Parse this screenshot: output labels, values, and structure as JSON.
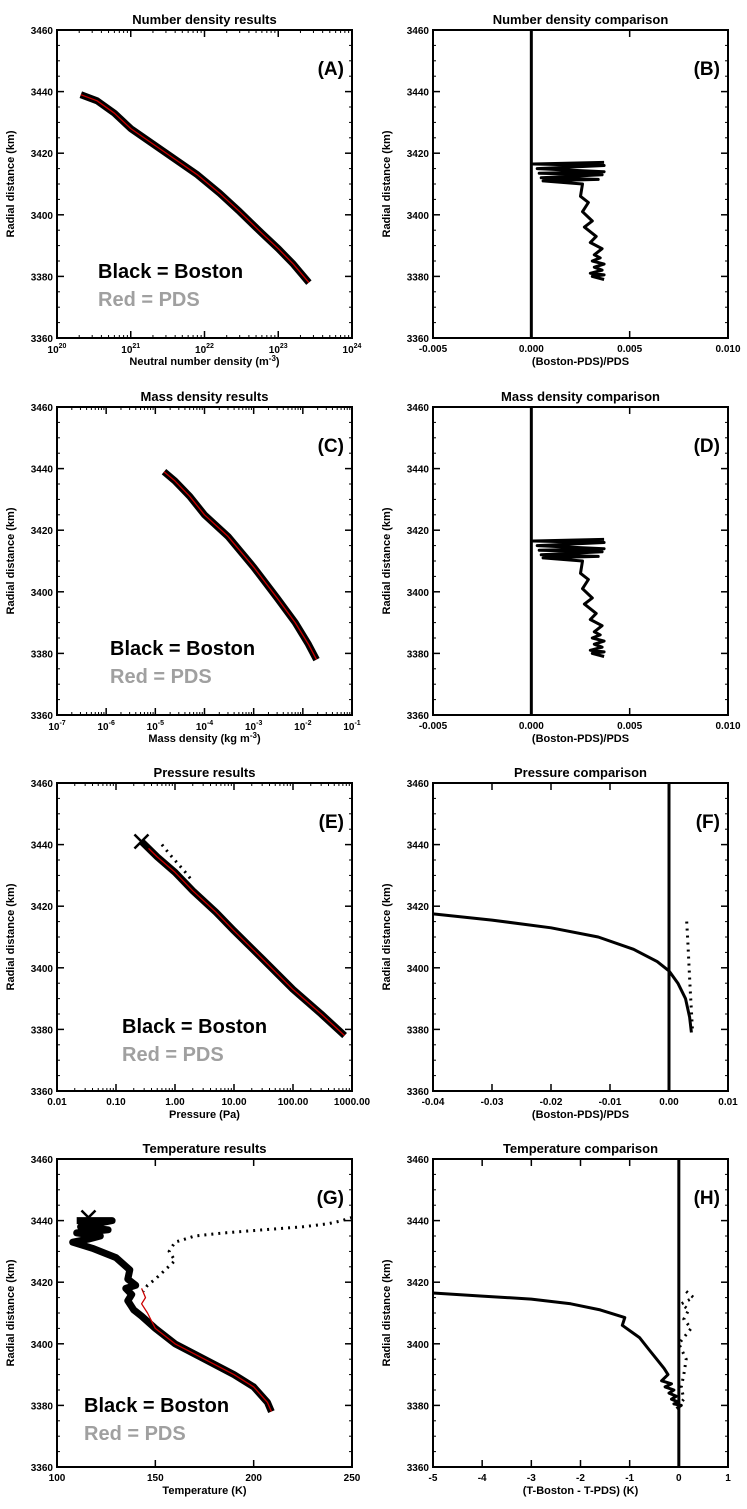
{
  "chart_data": [
    {
      "type": "line",
      "title": "Number density results",
      "panel_label": "(A)",
      "xlabel": "Neutral number density (m-3)",
      "xlabel_main": "Neutral number density (m",
      "xlabel_sup": "-3",
      "xlabel_end": ")",
      "ylabel": "Radial distance (km)",
      "xscale": "log",
      "xlim": [
        1e+20,
        1e+24
      ],
      "ylim": [
        3360,
        3460
      ],
      "x_ticks": [
        1e+20,
        1e+21,
        1e+22,
        1e+23,
        1e+24
      ],
      "x_ticklabels": [
        {
          "b": "10",
          "e": "20"
        },
        {
          "b": "10",
          "e": "21"
        },
        {
          "b": "10",
          "e": "22"
        },
        {
          "b": "10",
          "e": "23"
        },
        {
          "b": "10",
          "e": "24"
        }
      ],
      "y_ticks": [
        3360,
        3380,
        3400,
        3420,
        3440,
        3460
      ],
      "y_ticklabels": [
        "3360",
        "3380",
        "3400",
        "3420",
        "3440",
        "3460"
      ],
      "legend": [
        "Black = Boston",
        "Red = PDS"
      ],
      "legend_colors": [
        "#000000",
        "#a0a0a0"
      ],
      "series": [
        {
          "name": "Boston",
          "color": "#000000",
          "style": "thick",
          "x": [
            2.1e+20,
            3.5e+20,
            6e+20,
            1e+21,
            2e+21,
            4e+21,
            8e+21,
            1.6e+22,
            3e+22,
            6e+22,
            1e+23,
            1.6e+23,
            2.6e+23
          ],
          "y": [
            3439,
            3437,
            3433,
            3428,
            3423,
            3418,
            3413,
            3407,
            3401,
            3394,
            3389,
            3384,
            3378
          ]
        },
        {
          "name": "PDS",
          "color": "#cc0000",
          "style": "thin",
          "x": [
            2.1e+20,
            3.5e+20,
            6e+20,
            1e+21,
            2e+21,
            4e+21,
            8e+21,
            1.6e+22,
            3e+22,
            6e+22,
            1e+23,
            1.6e+23,
            2.6e+23
          ],
          "y": [
            3439,
            3437,
            3433,
            3428,
            3423,
            3418,
            3413,
            3407,
            3401,
            3394,
            3389,
            3384,
            3378
          ]
        }
      ]
    },
    {
      "type": "line",
      "title": "Number density comparison",
      "panel_label": "(B)",
      "xlabel": "(Boston-PDS)/PDS",
      "ylabel": "Radial distance (km)",
      "xlim": [
        -0.005,
        0.01
      ],
      "ylim": [
        3360,
        3460
      ],
      "x_ticks": [
        -0.005,
        0,
        0.005,
        0.01
      ],
      "x_ticklabels": [
        "-0.005",
        "0.000",
        "0.005",
        "0.010"
      ],
      "y_ticks": [
        3360,
        3380,
        3400,
        3420,
        3440,
        3460
      ],
      "y_ticklabels": [
        "3360",
        "3380",
        "3400",
        "3420",
        "3440",
        "3460"
      ],
      "vline_x": 0,
      "series": [
        {
          "name": "Boston vs PDS",
          "color": "#000000",
          "style": "medium",
          "x": [
            0.0037,
            0.0001,
            0.0037,
            0.0003,
            0.0037,
            0.0004,
            0.0036,
            0.0005,
            0.0034,
            0.0006,
            0.0026,
            0.0025,
            0.0029,
            0.0026,
            0.0031,
            0.0027,
            0.0033,
            0.003,
            0.0036,
            0.0032,
            0.0035,
            0.0031,
            0.0037,
            0.0032,
            0.0036,
            0.003,
            0.0037,
            0.0031,
            0.0037
          ],
          "y": [
            3417,
            3416.5,
            3416,
            3415,
            3414,
            3413.5,
            3413,
            3412,
            3411.5,
            3411,
            3410,
            3406,
            3404,
            3401,
            3398,
            3396,
            3393,
            3391,
            3389,
            3387,
            3386,
            3385,
            3384,
            3383,
            3382,
            3381,
            3380.5,
            3380,
            3379
          ]
        }
      ]
    },
    {
      "type": "line",
      "title": "Mass density results",
      "panel_label": "(C)",
      "xlabel": "Mass density (kg m-3)",
      "xlabel_main": "Mass density (kg m",
      "xlabel_sup": "-3",
      "xlabel_end": ")",
      "ylabel": "Radial distance (km)",
      "xscale": "log",
      "xlim": [
        1e-07,
        0.1
      ],
      "ylim": [
        3360,
        3460
      ],
      "x_ticks": [
        1e-07,
        1e-06,
        1e-05,
        0.0001,
        0.001,
        0.01,
        0.1
      ],
      "x_ticklabels": [
        {
          "b": "10",
          "e": "-7"
        },
        {
          "b": "10",
          "e": "-6"
        },
        {
          "b": "10",
          "e": "-5"
        },
        {
          "b": "10",
          "e": "-4"
        },
        {
          "b": "10",
          "e": "-3"
        },
        {
          "b": "10",
          "e": "-2"
        },
        {
          "b": "10",
          "e": "-1"
        }
      ],
      "y_ticks": [
        3360,
        3380,
        3400,
        3420,
        3440,
        3460
      ],
      "y_ticklabels": [
        "3360",
        "3380",
        "3400",
        "3420",
        "3440",
        "3460"
      ],
      "legend": [
        "Black = Boston",
        "Red = PDS"
      ],
      "legend_colors": [
        "#000000",
        "#a0a0a0"
      ],
      "series": [
        {
          "name": "Boston",
          "color": "#000000",
          "style": "thick",
          "x": [
            1.5e-05,
            2.5e-05,
            5e-05,
            0.0001,
            0.0003,
            0.001,
            0.003,
            0.007,
            0.013,
            0.019
          ],
          "y": [
            3439,
            3436,
            3431,
            3425,
            3418,
            3408,
            3398,
            3390,
            3383,
            3378
          ]
        },
        {
          "name": "PDS",
          "color": "#cc0000",
          "style": "thin",
          "x": [
            1.5e-05,
            2.5e-05,
            5e-05,
            0.0001,
            0.0003,
            0.001,
            0.003,
            0.007,
            0.013,
            0.019
          ],
          "y": [
            3439,
            3436,
            3431,
            3425,
            3418,
            3408,
            3398,
            3390,
            3383,
            3378
          ]
        }
      ]
    },
    {
      "type": "line",
      "title": "Mass density comparison",
      "panel_label": "(D)",
      "xlabel": "(Boston-PDS)/PDS",
      "ylabel": "Radial distance (km)",
      "xlim": [
        -0.005,
        0.01
      ],
      "ylim": [
        3360,
        3460
      ],
      "x_ticks": [
        -0.005,
        0,
        0.005,
        0.01
      ],
      "x_ticklabels": [
        "-0.005",
        "0.000",
        "0.005",
        "0.010"
      ],
      "y_ticks": [
        3360,
        3380,
        3400,
        3420,
        3440,
        3460
      ],
      "y_ticklabels": [
        "3360",
        "3380",
        "3400",
        "3420",
        "3440",
        "3460"
      ],
      "vline_x": 0,
      "series": [
        {
          "name": "Boston vs PDS",
          "color": "#000000",
          "style": "medium",
          "x": [
            0.0037,
            0.0001,
            0.0037,
            0.0003,
            0.0037,
            0.0004,
            0.0036,
            0.0005,
            0.0034,
            0.0006,
            0.0026,
            0.0025,
            0.0029,
            0.0026,
            0.0031,
            0.0027,
            0.0033,
            0.003,
            0.0036,
            0.0032,
            0.0035,
            0.0031,
            0.0037,
            0.0032,
            0.0036,
            0.003,
            0.0037,
            0.0031,
            0.0037
          ],
          "y": [
            3417,
            3416.5,
            3416,
            3415,
            3414,
            3413.5,
            3413,
            3412,
            3411.5,
            3411,
            3410,
            3406,
            3404,
            3401,
            3398,
            3396,
            3393,
            3391,
            3389,
            3387,
            3386,
            3385,
            3384,
            3383,
            3382,
            3381,
            3380.5,
            3380,
            3379
          ]
        }
      ]
    },
    {
      "type": "line",
      "title": "Pressure results",
      "panel_label": "(E)",
      "xlabel": "Pressure (Pa)",
      "ylabel": "Radial distance (km)",
      "xscale": "log",
      "xlim": [
        0.01,
        1000
      ],
      "ylim": [
        3360,
        3460
      ],
      "x_ticks": [
        0.01,
        0.1,
        1,
        10,
        100,
        1000
      ],
      "x_ticklabels": [
        "0.01",
        "0.10",
        "1.00",
        "10.00",
        "100.00",
        "1000.00"
      ],
      "y_ticks": [
        3360,
        3380,
        3400,
        3420,
        3440,
        3460
      ],
      "y_ticklabels": [
        "3360",
        "3380",
        "3400",
        "3420",
        "3440",
        "3460"
      ],
      "legend": [
        "Black = Boston",
        "Red = PDS"
      ],
      "legend_colors": [
        "#000000",
        "#a0a0a0"
      ],
      "marker": {
        "x": 0.27,
        "y": 3441
      },
      "series": [
        {
          "name": "Boston",
          "color": "#000000",
          "style": "thick",
          "x": [
            0.27,
            0.5,
            1,
            2,
            5,
            10,
            30,
            100,
            300,
            750
          ],
          "y": [
            3441,
            3436,
            3431,
            3425,
            3418,
            3412,
            3403,
            3393,
            3385,
            3378
          ]
        },
        {
          "name": "PDS",
          "color": "#cc0000",
          "style": "thin",
          "x": [
            0.27,
            0.5,
            1,
            2,
            5,
            10,
            30,
            100,
            300,
            750
          ],
          "y": [
            3441,
            3436,
            3431,
            3425,
            3418,
            3412,
            3403,
            3393,
            3385,
            3378
          ]
        },
        {
          "name": "Dotted",
          "color": "#000000",
          "style": "dotted",
          "x": [
            0.6,
            0.8,
            1.1,
            1.5,
            2.0
          ],
          "y": [
            3440,
            3437,
            3434,
            3431,
            3428
          ]
        }
      ]
    },
    {
      "type": "line",
      "title": "Pressure comparison",
      "panel_label": "(F)",
      "xlabel": "(Boston-PDS)/PDS",
      "ylabel": "Radial distance (km)",
      "xlim": [
        -0.04,
        0.01
      ],
      "ylim": [
        3360,
        3460
      ],
      "x_ticks": [
        -0.04,
        -0.03,
        -0.02,
        -0.01,
        0,
        0.01
      ],
      "x_ticklabels": [
        "-0.04",
        "-0.03",
        "-0.02",
        "-0.01",
        "0.00",
        "0.01"
      ],
      "y_ticks": [
        3360,
        3380,
        3400,
        3420,
        3440,
        3460
      ],
      "y_ticklabels": [
        "3360",
        "3380",
        "3400",
        "3420",
        "3440",
        "3460"
      ],
      "vline_x": 0,
      "series": [
        {
          "name": "Solid",
          "color": "#000000",
          "style": "medium",
          "x": [
            -0.04,
            -0.03,
            -0.02,
            -0.012,
            -0.006,
            -0.002,
            0.0,
            0.0015,
            0.0028,
            0.0035,
            0.0038
          ],
          "y": [
            3417.5,
            3415.5,
            3413,
            3410,
            3406,
            3402,
            3399,
            3395,
            3390,
            3384,
            3379
          ]
        },
        {
          "name": "Dotted",
          "color": "#000000",
          "style": "dotted",
          "x": [
            0.003,
            0.0032,
            0.0034,
            0.0036,
            0.0038,
            0.004
          ],
          "y": [
            3415,
            3408,
            3400,
            3393,
            3386,
            3379
          ]
        }
      ]
    },
    {
      "type": "line",
      "title": "Temperature results",
      "panel_label": "(G)",
      "xlabel": "Temperature (K)",
      "ylabel": "Radial distance (km)",
      "xlim": [
        100,
        250
      ],
      "ylim": [
        3360,
        3460
      ],
      "x_ticks": [
        100,
        150,
        200,
        250
      ],
      "x_ticklabels": [
        "100",
        "150",
        "200",
        "250"
      ],
      "y_ticks": [
        3360,
        3380,
        3400,
        3420,
        3440,
        3460
      ],
      "y_ticklabels": [
        "3360",
        "3380",
        "3400",
        "3420",
        "3440",
        "3460"
      ],
      "legend": [
        "Black = Boston",
        "Red = PDS"
      ],
      "legend_colors": [
        "#000000",
        "#a0a0a0"
      ],
      "marker": {
        "x": 116,
        "y": 3441
      },
      "series": [
        {
          "name": "Boston",
          "color": "#000000",
          "style": "thick",
          "x": [
            110,
            128,
            112,
            126,
            110,
            122,
            116,
            108,
            118,
            130,
            137,
            136,
            140,
            135,
            138,
            136,
            139,
            143,
            150,
            160,
            175,
            190,
            200,
            207,
            209
          ],
          "y": [
            3440,
            3440,
            3438,
            3437,
            3436,
            3435,
            3434,
            3433,
            3431,
            3428,
            3424,
            3421,
            3419,
            3418,
            3416,
            3414,
            3411,
            3409,
            3405,
            3400,
            3395,
            3390,
            3386,
            3381,
            3378
          ]
        },
        {
          "name": "PDS",
          "color": "#cc0000",
          "style": "thin",
          "x": [
            143,
            145,
            143,
            146,
            150,
            160,
            175,
            190,
            200,
            207,
            209
          ],
          "y": [
            3418,
            3415,
            3413,
            3410,
            3405,
            3400,
            3395,
            3390,
            3386,
            3381,
            3378
          ]
        },
        {
          "name": "Dotted",
          "color": "#000000",
          "style": "dotted",
          "x": [
            250,
            245,
            238,
            225,
            205,
            185,
            170,
            160,
            157,
            160,
            155,
            150,
            146,
            144
          ],
          "y": [
            3441,
            3440,
            3439,
            3438,
            3437,
            3436,
            3435,
            3433,
            3430,
            3427,
            3424,
            3421,
            3419,
            3417
          ]
        }
      ]
    },
    {
      "type": "line",
      "title": "Temperature comparison",
      "panel_label": "(H)",
      "xlabel": "(T-Boston - T-PDS) (K)",
      "ylabel": "Radial distance (km)",
      "xlim": [
        -5,
        1
      ],
      "ylim": [
        3360,
        3460
      ],
      "x_ticks": [
        -5,
        -4,
        -3,
        -2,
        -1,
        0,
        1
      ],
      "x_ticklabels": [
        "-5",
        "-4",
        "-3",
        "-2",
        "-1",
        "0",
        "1"
      ],
      "y_ticks": [
        3360,
        3380,
        3400,
        3420,
        3440,
        3460
      ],
      "y_ticklabels": [
        "3360",
        "3380",
        "3400",
        "3420",
        "3440",
        "3460"
      ],
      "vline_x": 0,
      "series": [
        {
          "name": "Solid",
          "color": "#000000",
          "style": "medium",
          "x": [
            -5,
            -4,
            -3,
            -2.2,
            -1.6,
            -1.1,
            -1.15,
            -0.8,
            -0.6,
            -0.45,
            -0.3,
            -0.22,
            -0.35,
            -0.15,
            -0.28,
            -0.1,
            -0.2,
            -0.05,
            -0.15,
            0.0,
            -0.1,
            0.05,
            -0.05
          ],
          "y": [
            3416.5,
            3415.5,
            3414.5,
            3413,
            3411,
            3408.5,
            3406,
            3402,
            3398,
            3395,
            3392,
            3390,
            3388,
            3387,
            3386,
            3385,
            3384,
            3383,
            3382,
            3381,
            3380.5,
            3380,
            3379
          ]
        },
        {
          "name": "Dotted",
          "color": "#000000",
          "style": "dotted",
          "x": [
            0.15,
            0.3,
            0.05,
            0.2,
            0.1,
            0.25,
            0.0,
            0.15,
            0.1,
            0.05,
            0.1,
            0.0
          ],
          "y": [
            3417,
            3415,
            3413,
            3411,
            3408,
            3405,
            3400,
            3395,
            3390,
            3386,
            3382,
            3380
          ]
        }
      ]
    }
  ]
}
